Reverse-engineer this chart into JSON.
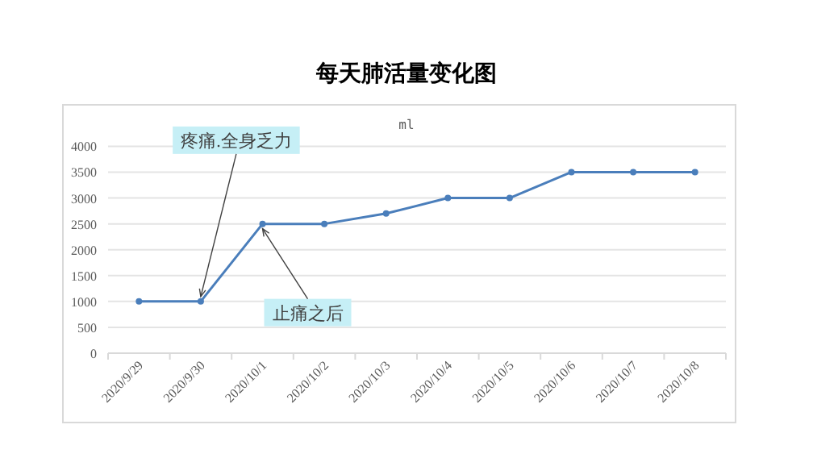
{
  "chart_data": {
    "type": "line",
    "title": "每天肺活量变化图",
    "categories": [
      "2020/9/29",
      "2020/9/30",
      "2020/10/1",
      "2020/10/2",
      "2020/10/3",
      "2020/10/4",
      "2020/10/5",
      "2020/10/6",
      "2020/10/7",
      "2020/10/8"
    ],
    "series": [
      {
        "color": "#4a7ebb",
        "values": [
          1000,
          1000,
          2500,
          2500,
          2700,
          3000,
          3000,
          3500,
          3500,
          3500
        ]
      }
    ],
    "ylim": [
      0,
      4000
    ],
    "yticks": [
      0,
      500,
      1000,
      1500,
      2000,
      2500,
      3000,
      3500,
      4000
    ],
    "grid": "y",
    "marker": "circle",
    "line_style": "solid",
    "annotations": [
      "ml",
      {
        "text": "疼痛.全身乏力",
        "x": "2020/9/30",
        "y": 1000
      },
      {
        "text": "止痛之后",
        "x": "2020/10/1",
        "y": 2500
      }
    ]
  }
}
